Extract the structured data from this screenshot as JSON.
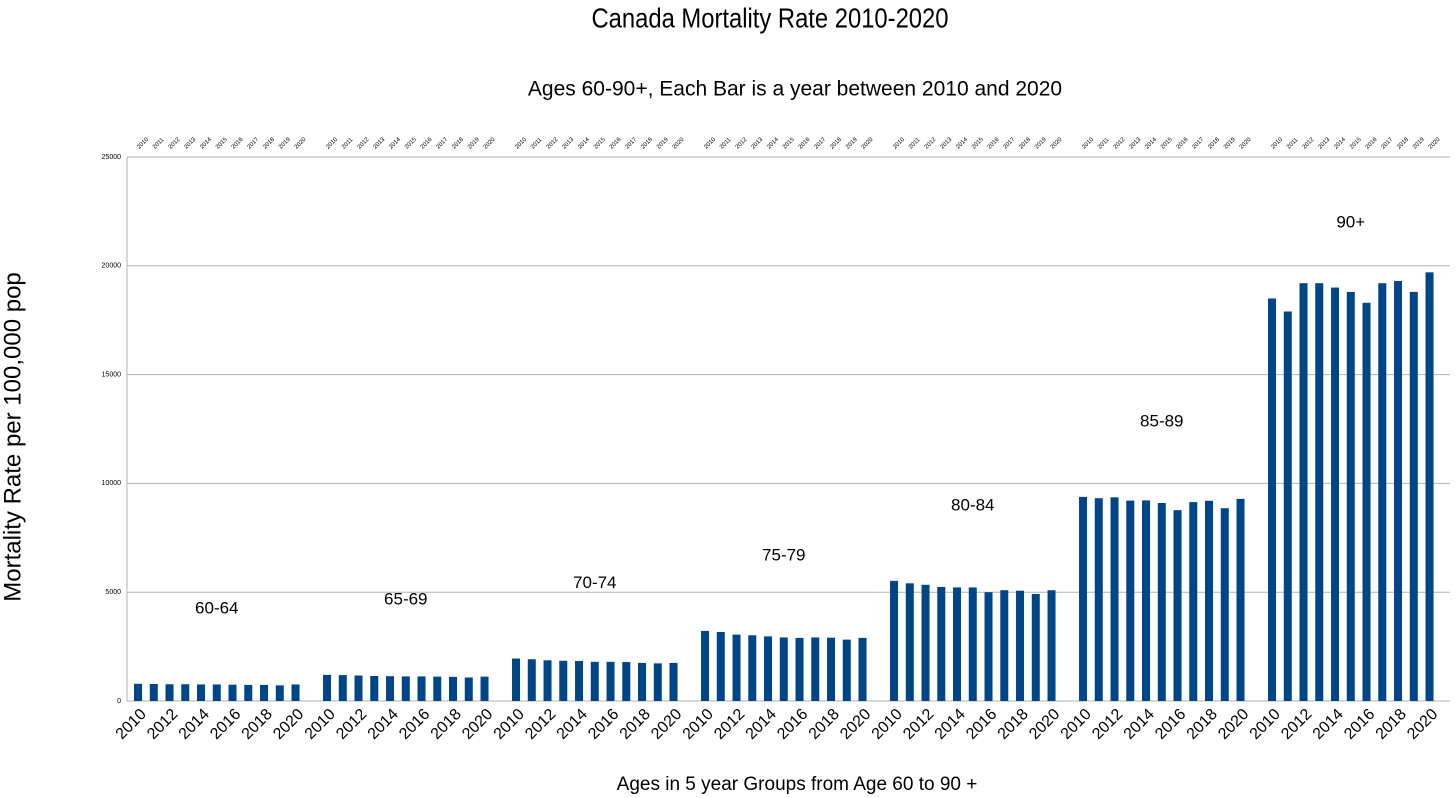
{
  "chart_data": {
    "type": "bar",
    "title": "Canada Mortality Rate 2010-2020",
    "subtitle": "Ages 60-90+, Each Bar is a year between 2010 and 2020",
    "y_label": "Mortality Rate per 100,000 pop",
    "x_label": "Ages in 5 year Groups from Age 60 to 90 +",
    "categories": [
      "2010",
      "2011",
      "2012",
      "2013",
      "2014",
      "2015",
      "2016",
      "2017",
      "2018",
      "2019",
      "2020"
    ],
    "series": [
      {
        "name": "60-64",
        "color": "#004586",
        "values": [
          790,
          780,
          770,
          770,
          760,
          760,
          750,
          740,
          740,
          720,
          760
        ]
      },
      {
        "name": "65-69",
        "color": "#004586",
        "values": [
          1200,
          1190,
          1170,
          1150,
          1140,
          1130,
          1130,
          1120,
          1110,
          1080,
          1120
        ]
      },
      {
        "name": "70-74",
        "color": "#004586",
        "values": [
          1950,
          1920,
          1870,
          1850,
          1840,
          1800,
          1800,
          1790,
          1750,
          1730,
          1750
        ]
      },
      {
        "name": "75-79",
        "color": "#004586",
        "values": [
          3220,
          3170,
          3050,
          3020,
          2970,
          2920,
          2900,
          2920,
          2910,
          2820,
          2900
        ]
      },
      {
        "name": "80-84",
        "color": "#004586",
        "values": [
          5520,
          5410,
          5340,
          5240,
          5220,
          5220,
          5000,
          5090,
          5070,
          4920,
          5090
        ]
      },
      {
        "name": "85-89",
        "color": "#004586",
        "values": [
          9380,
          9320,
          9360,
          9210,
          9220,
          9100,
          8770,
          9140,
          9200,
          8860,
          9290
        ]
      },
      {
        "name": "90+",
        "color": "#004586",
        "values": [
          18500,
          17900,
          19200,
          19200,
          19000,
          18800,
          18300,
          19200,
          19300,
          18800,
          19700
        ]
      }
    ],
    "ylim": [
      0,
      25000
    ],
    "yticks": [
      0,
      5000,
      10000,
      15000,
      20000,
      25000
    ],
    "grid": true
  }
}
